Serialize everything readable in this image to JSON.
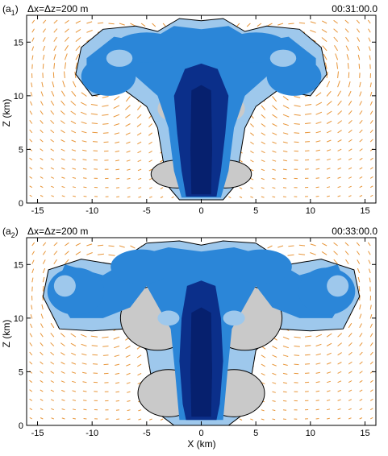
{
  "chart_data": [
    {
      "type": "heatmap",
      "panel_label": "(a",
      "panel_sub": "1",
      "panel_close": ")",
      "resolution_label": "Δx=Δz=200  m",
      "time_label": "00:31:00.0",
      "xlabel": "",
      "ylabel": "Z (km)",
      "xlim": [
        -16,
        16
      ],
      "ylim": [
        0,
        17.5
      ],
      "x_ticks": [
        -15,
        -10,
        -5,
        0,
        5,
        10,
        15
      ],
      "y_ticks": [
        0,
        5,
        10,
        15
      ],
      "x_tick_labels": [
        "-15",
        "-10",
        "-5",
        "0",
        "5",
        "10",
        "15"
      ],
      "y_tick_labels": [
        "0",
        "5",
        "10",
        "15"
      ],
      "fields": {
        "cloud_light_color": "#9ec8ec",
        "cloud_mid_color": "#2b86d8",
        "cloud_dark_color": "#0b2f8a",
        "cloud_core_color": "#06206e",
        "gray_region_color": "#c9c9c9",
        "wind_vector_color": "#e8963a"
      }
    },
    {
      "type": "heatmap",
      "panel_label": "(a",
      "panel_sub": "2",
      "panel_close": ")",
      "resolution_label": "Δx=Δz=200  m",
      "time_label": "00:33:00.0",
      "xlabel": "X (km)",
      "ylabel": "Z (km)",
      "xlim": [
        -16,
        16
      ],
      "ylim": [
        0,
        17.5
      ],
      "x_ticks": [
        -15,
        -10,
        -5,
        0,
        5,
        10,
        15
      ],
      "y_ticks": [
        0,
        5,
        10,
        15
      ],
      "x_tick_labels": [
        "-15",
        "-10",
        "-5",
        "0",
        "5",
        "10",
        "15"
      ],
      "y_tick_labels": [
        "0",
        "5",
        "10",
        "15"
      ],
      "fields": {
        "cloud_light_color": "#9ec8ec",
        "cloud_mid_color": "#2b86d8",
        "cloud_dark_color": "#0b2f8a",
        "cloud_core_color": "#06206e",
        "gray_region_color": "#c9c9c9",
        "wind_vector_color": "#e8963a"
      }
    }
  ]
}
